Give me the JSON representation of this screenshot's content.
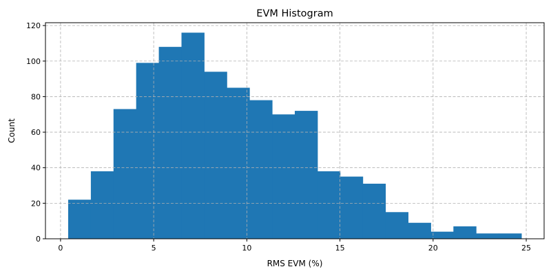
{
  "chart_data": {
    "type": "bar",
    "title": "EVM Histogram",
    "xlabel": "RMS EVM (%)",
    "ylabel": "Count",
    "bin_range": [
      0.41,
      24.74
    ],
    "values": [
      22,
      38,
      73,
      99,
      108,
      116,
      94,
      85,
      78,
      70,
      72,
      38,
      35,
      31,
      15,
      9,
      4,
      7,
      3,
      3
    ],
    "xlim": [
      -0.81,
      25.96
    ],
    "ylim": [
      0,
      121.6
    ],
    "xticks": [
      0,
      5,
      10,
      15,
      20,
      25
    ],
    "yticks": [
      0,
      20,
      40,
      60,
      80,
      100,
      120
    ],
    "grid": true,
    "grid_style": "dashed",
    "bar_color": "#1f77b4",
    "grid_color": "#b0b0b0"
  }
}
